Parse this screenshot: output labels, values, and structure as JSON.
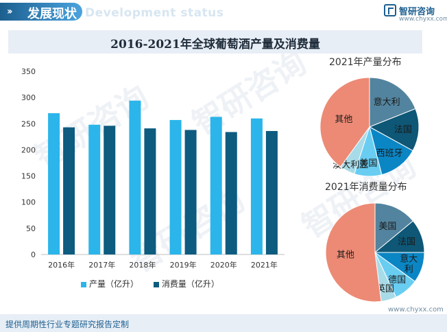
{
  "header": {
    "title": "发展现状",
    "subtitle": "Development status"
  },
  "logo": {
    "name": "智研咨询",
    "url": "www.chyxx.com"
  },
  "footer": {
    "text": "提供周期性行业专题研究报告定制",
    "url": "www.chyxx.com"
  },
  "watermark": {
    "text": "智研咨询"
  },
  "colors": {
    "production": "#2bb5ea",
    "consumption": "#0d5b7f",
    "accent": "#1c5f8f"
  },
  "chart_data": [
    {
      "type": "bar",
      "title": "2016-2021年全球葡萄酒产量及消费量",
      "categories": [
        "2016年",
        "2017年",
        "2018年",
        "2019年",
        "2020年",
        "2021年"
      ],
      "series": [
        {
          "name": "产量（亿升）",
          "values": [
            270,
            248,
            294,
            257,
            263,
            260
          ]
        },
        {
          "name": "消费量（亿升）",
          "values": [
            243,
            246,
            241,
            238,
            234,
            236
          ]
        }
      ],
      "yticks": [
        "0",
        "50",
        "100",
        "150",
        "200",
        "250",
        "300",
        "350"
      ],
      "ylim": [
        0,
        350
      ],
      "xlabel": "",
      "ylabel": "",
      "legend": "bottom"
    },
    {
      "type": "pie",
      "title": "2021年产量分布",
      "slices": [
        {
          "label": "意大利",
          "value": 19,
          "color": "#53849f"
        },
        {
          "label": "法国",
          "value": 14,
          "color": "#0e5776"
        },
        {
          "label": "西班牙",
          "value": 13,
          "color": "#0b86c5"
        },
        {
          "label": "美国",
          "value": 9,
          "color": "#69cdf2"
        },
        {
          "label": "澳大利亚",
          "value": 5,
          "color": "#a8dbe8"
        },
        {
          "label": "其他",
          "value": 40,
          "color": "#ec8a75"
        }
      ]
    },
    {
      "type": "pie",
      "title": "2021年消费量分布",
      "slices": [
        {
          "label": "美国",
          "value": 14,
          "color": "#53849f"
        },
        {
          "label": "法国",
          "value": 11,
          "color": "#0e5776"
        },
        {
          "label": "意大利",
          "value": 10,
          "color": "#0b86c5"
        },
        {
          "label": "德国",
          "value": 8,
          "color": "#69cdf2"
        },
        {
          "label": "英国",
          "value": 5,
          "color": "#a8dbe8"
        },
        {
          "label": "其他",
          "value": 52,
          "color": "#ec8a75"
        }
      ]
    }
  ]
}
